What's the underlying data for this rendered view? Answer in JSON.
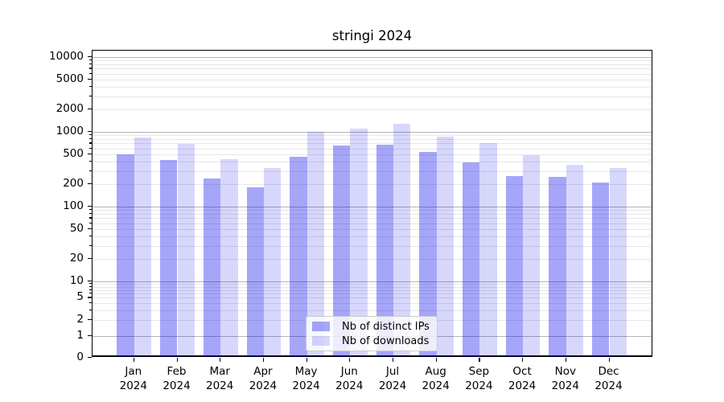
{
  "title": "stringi 2024",
  "colors": {
    "bar_distinct_ips": "#0000ee59",
    "bar_downloads": "#0000ee28",
    "major_gridline": "#b4b4b4",
    "minor_gridline": "#e7e7e7",
    "axis": "#000000",
    "background": "#ffffff"
  },
  "legend": {
    "items": [
      {
        "label": "Nb of distinct IPs",
        "color": "#0000ee59"
      },
      {
        "label": "Nb of downloads",
        "color": "#0000ee28"
      }
    ]
  },
  "chart_data": {
    "type": "bar",
    "title": "stringi 2024",
    "categories": [
      "Jan 2024",
      "Feb 2024",
      "Mar 2024",
      "Apr 2024",
      "May 2024",
      "Jun 2024",
      "Jul 2024",
      "Aug 2024",
      "Sep 2024",
      "Oct 2024",
      "Nov 2024",
      "Dec 2024"
    ],
    "series": [
      {
        "name": "Nb of distinct IPs",
        "color": "#0000ee59",
        "values": [
          505,
          420,
          235,
          180,
          460,
          650,
          665,
          535,
          390,
          255,
          250,
          210
        ]
      },
      {
        "name": "Nb of downloads",
        "color": "#0000ee28",
        "values": [
          850,
          685,
          430,
          330,
          1010,
          1110,
          1280,
          865,
          715,
          490,
          360,
          330
        ]
      }
    ],
    "xlabel": "",
    "ylabel": "",
    "yscale": "symlog",
    "ylim": [
      0,
      12000
    ],
    "yticks": [
      10000,
      5000,
      2000,
      1000,
      500,
      200,
      100,
      50,
      20,
      10,
      5,
      2,
      1,
      0
    ],
    "grid": true,
    "legend_position": "inside-bottom-center"
  }
}
